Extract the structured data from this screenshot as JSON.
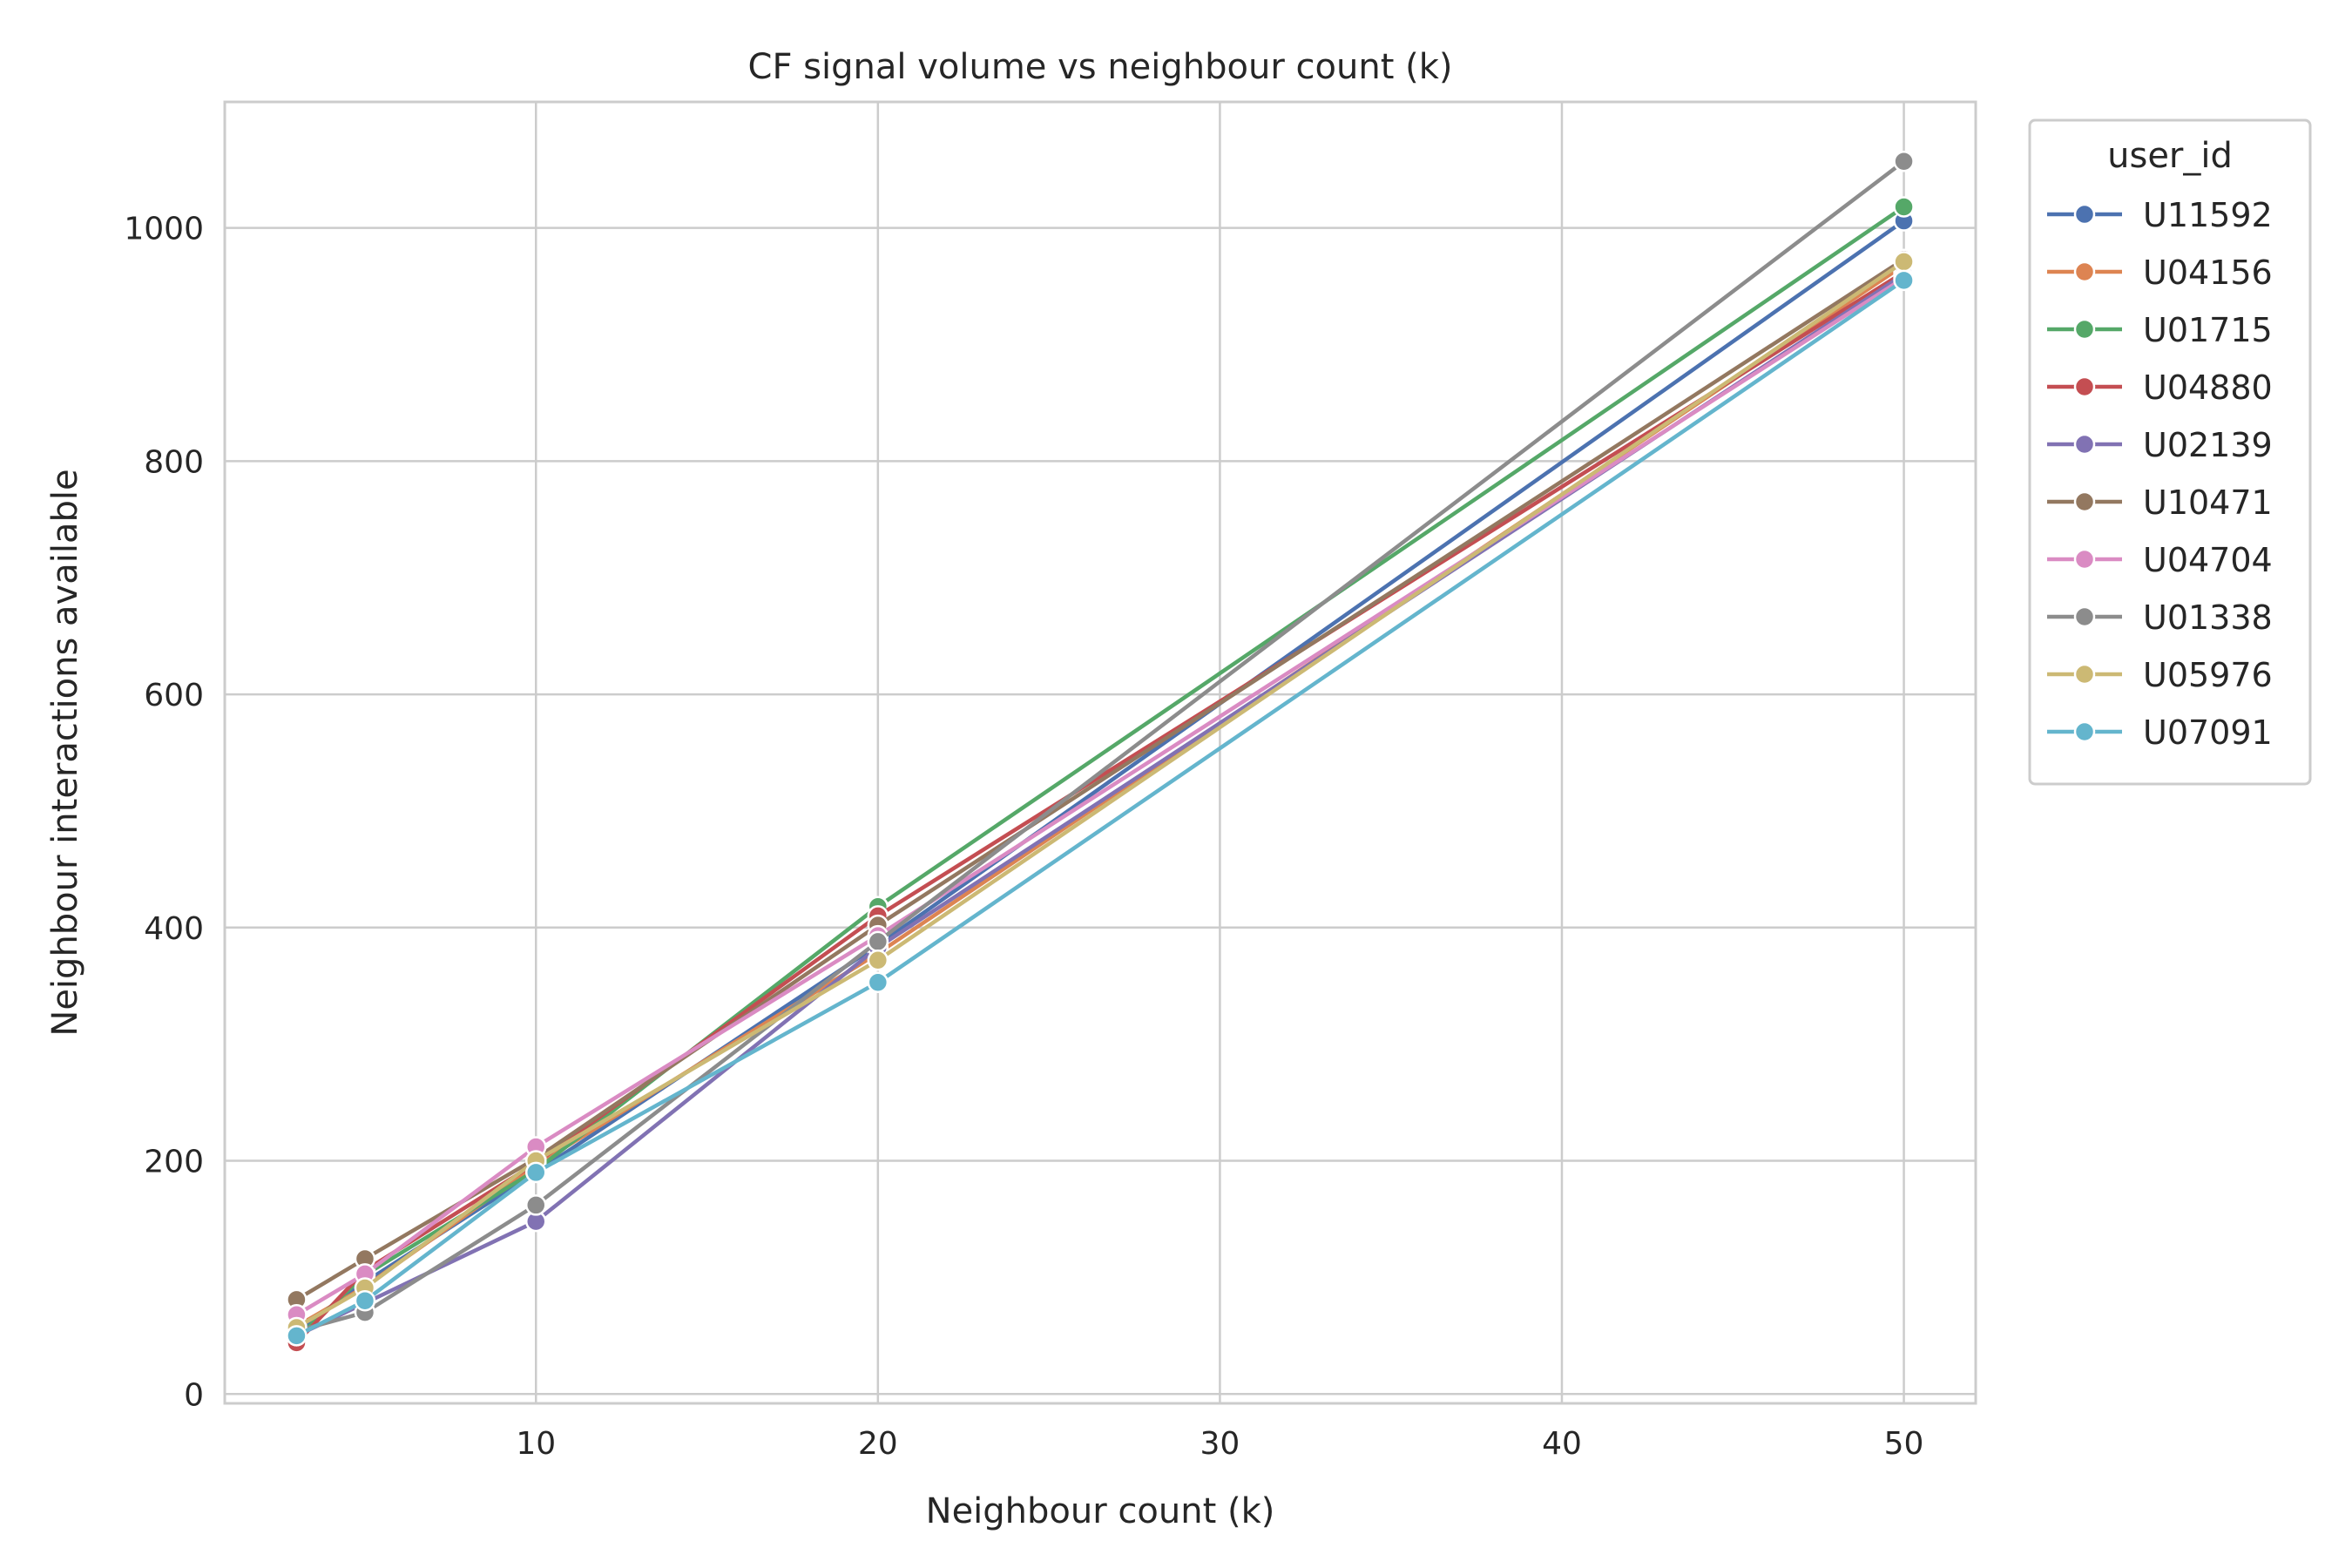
{
  "chart_data": {
    "type": "line",
    "title": "CF signal volume vs neighbour count (k)",
    "xlabel": "Neighbour count (k)",
    "ylabel": "Neighbour interactions available",
    "x": [
      3,
      5,
      10,
      20,
      50
    ],
    "xlim": [
      0.9,
      52.1
    ],
    "ylim": [
      -8,
      1108
    ],
    "xticks": [
      10,
      20,
      30,
      40,
      50
    ],
    "yticks": [
      0,
      200,
      400,
      600,
      800,
      1000
    ],
    "grid": true,
    "legend": {
      "title": "user_id",
      "placement": "outside-right-top"
    },
    "series": [
      {
        "name": "U11592",
        "color": "#4c72b0",
        "values": [
          53,
          96,
          190,
          385,
          1006
        ]
      },
      {
        "name": "U04156",
        "color": "#dd8452",
        "values": [
          58,
          92,
          196,
          378,
          968
        ]
      },
      {
        "name": "U01715",
        "color": "#55a868",
        "values": [
          48,
          102,
          192,
          418,
          1018
        ]
      },
      {
        "name": "U04880",
        "color": "#c44e52",
        "values": [
          44,
          106,
          198,
          410,
          962
        ]
      },
      {
        "name": "U02139",
        "color": "#8172b3",
        "values": [
          50,
          78,
          148,
          383,
          960
        ]
      },
      {
        "name": "U10471",
        "color": "#937860",
        "values": [
          81,
          116,
          202,
          402,
          973
        ]
      },
      {
        "name": "U04704",
        "color": "#da8bc3",
        "values": [
          68,
          103,
          212,
          393,
          957
        ]
      },
      {
        "name": "U01338",
        "color": "#8c8c8c",
        "values": [
          54,
          70,
          162,
          388,
          1057
        ]
      },
      {
        "name": "U05976",
        "color": "#ccb974",
        "values": [
          57,
          91,
          200,
          372,
          971
        ]
      },
      {
        "name": "U07091",
        "color": "#64b5cd",
        "values": [
          50,
          80,
          190,
          353,
          955
        ]
      }
    ]
  }
}
